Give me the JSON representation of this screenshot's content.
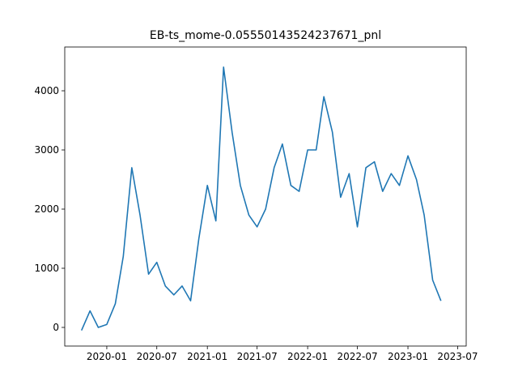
{
  "chart_data": {
    "type": "line",
    "title": "EB-ts_mome-0.05550143524237671_pnl",
    "x": [
      "2019-10",
      "2019-11",
      "2019-12",
      "2020-01",
      "2020-02",
      "2020-03",
      "2020-04",
      "2020-05",
      "2020-06",
      "2020-07",
      "2020-08",
      "2020-09",
      "2020-10",
      "2020-11",
      "2020-12",
      "2021-01",
      "2021-02",
      "2021-03",
      "2021-04",
      "2021-05",
      "2021-06",
      "2021-07",
      "2021-08",
      "2021-09",
      "2021-10",
      "2021-11",
      "2021-12",
      "2022-01",
      "2022-02",
      "2022-03",
      "2022-04",
      "2022-05",
      "2022-06",
      "2022-07",
      "2022-08",
      "2022-09",
      "2022-10",
      "2022-11",
      "2022-12",
      "2023-01",
      "2023-02",
      "2023-03",
      "2023-04",
      "2023-05"
    ],
    "values": [
      -50,
      280,
      0,
      50,
      400,
      1200,
      2700,
      1900,
      900,
      1100,
      700,
      550,
      700,
      450,
      1500,
      2400,
      1800,
      4400,
      3300,
      2400,
      1900,
      1700,
      2000,
      2700,
      3100,
      2400,
      2300,
      3000,
      3000,
      3900,
      3300,
      2200,
      2600,
      1700,
      2700,
      2800,
      2300,
      2600,
      2400,
      2900,
      2500,
      1900,
      800,
      450
    ],
    "color": "#1f77b4",
    "xlim": [
      "2019-08",
      "2023-08"
    ],
    "xticks": [
      "2020-01",
      "2020-07",
      "2021-01",
      "2021-07",
      "2022-01",
      "2022-07",
      "2023-01",
      "2023-07"
    ],
    "ylim": [
      -315,
      4740
    ],
    "yticks": [
      0,
      1000,
      2000,
      3000,
      4000
    ]
  }
}
